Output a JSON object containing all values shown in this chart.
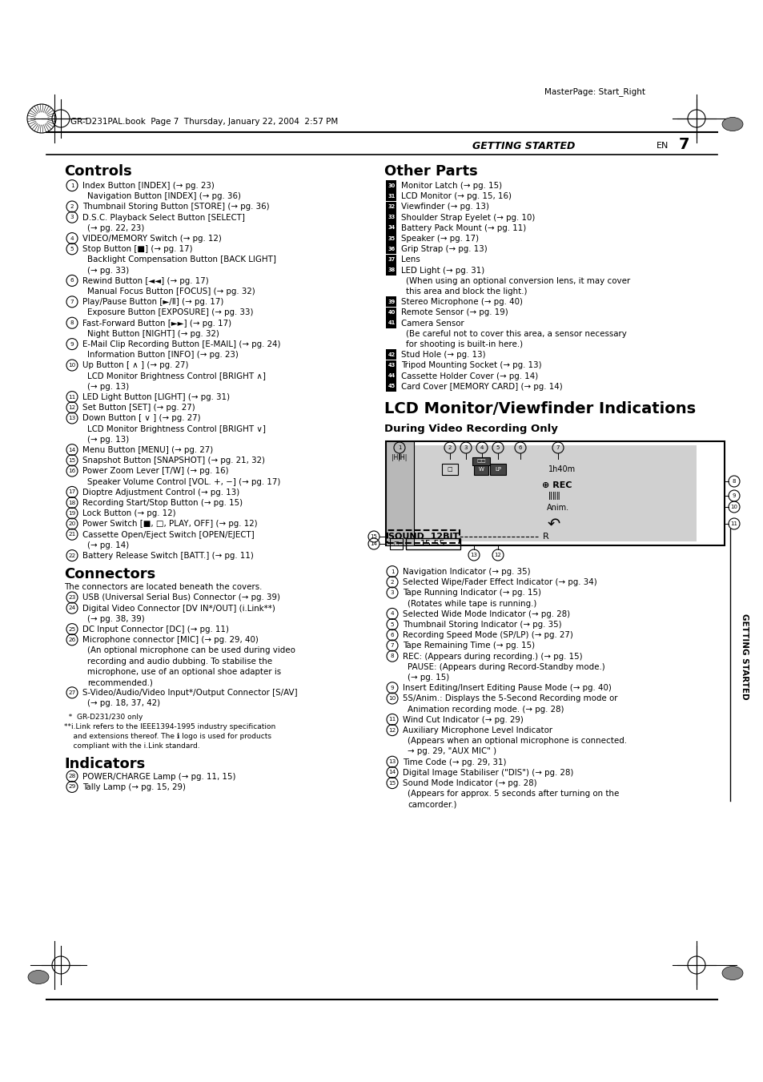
{
  "bg_color": "#ffffff",
  "page_width": 9.54,
  "page_height": 13.51,
  "header_text": "GR-D231PAL.book  Page 7  Thursday, January 22, 2004  2:57 PM",
  "masterpage_text": "MasterPage: Start_Right",
  "getting_started_label": "GETTING STARTED",
  "page_number": "7",
  "en_text": "EN",
  "controls_title": "Controls",
  "controls_items": [
    [
      "1",
      "Index Button [INDEX] (→ pg. 23)\n    Navigation Button [INDEX] (→ pg. 36)"
    ],
    [
      "2",
      "Thumbnail Storing Button [STORE] (→ pg. 36)"
    ],
    [
      "3",
      "D.S.C. Playback Select Button [SELECT]\n    (→ pg. 22, 23)"
    ],
    [
      "4",
      "VIDEO/MEMORY Switch (→ pg. 12)"
    ],
    [
      "5",
      "Stop Button [■] (→ pg. 17)\n    Backlight Compensation Button [BACK LIGHT]\n    (→ pg. 33)"
    ],
    [
      "6",
      "Rewind Button [◄◄] (→ pg. 17)\n    Manual Focus Button [FOCUS] (→ pg. 32)"
    ],
    [
      "7",
      "Play/Pause Button [►/Ⅱ] (→ pg. 17)\n    Exposure Button [EXPOSURE] (→ pg. 33)"
    ],
    [
      "8",
      "Fast-Forward Button [►►] (→ pg. 17)\n    Night Button [NIGHT] (→ pg. 32)"
    ],
    [
      "9",
      "E-Mail Clip Recording Button [E-MAIL] (→ pg. 24)\n    Information Button [INFO] (→ pg. 23)"
    ],
    [
      "10",
      "Up Button [ ∧ ] (→ pg. 27)\n    LCD Monitor Brightness Control [BRIGHT ∧]\n    (→ pg. 13)"
    ],
    [
      "11",
      "LED Light Button [LIGHT] (→ pg. 31)"
    ],
    [
      "12",
      "Set Button [SET] (→ pg. 27)"
    ],
    [
      "13",
      "Down Button [ ∨ ] (→ pg. 27)\n    LCD Monitor Brightness Control [BRIGHT ∨]\n    (→ pg. 13)"
    ],
    [
      "14",
      "Menu Button [MENU] (→ pg. 27)"
    ],
    [
      "15",
      "Snapshot Button [SNAPSHOT] (→ pg. 21, 32)"
    ],
    [
      "16",
      "Power Zoom Lever [T/W] (→ pg. 16)\n    Speaker Volume Control [VOL. +, −] (→ pg. 17)"
    ],
    [
      "17",
      "Dioptre Adjustment Control (→ pg. 13)"
    ],
    [
      "18",
      "Recording Start/Stop Button (→ pg. 15)"
    ],
    [
      "19",
      "Lock Button (→ pg. 12)"
    ],
    [
      "20",
      "Power Switch [■, □, PLAY, OFF] (→ pg. 12)"
    ],
    [
      "21",
      "Cassette Open/Eject Switch [OPEN/EJECT]\n    (→ pg. 14)"
    ],
    [
      "22",
      "Battery Release Switch [BATT.] (→ pg. 11)"
    ]
  ],
  "connectors_title": "Connectors",
  "connectors_intro": "The connectors are located beneath the covers.",
  "connectors_items": [
    [
      "23",
      "USB (Universal Serial Bus) Connector (→ pg. 39)"
    ],
    [
      "24",
      "Digital Video Connector [DV IN*/OUT] (i.Link**)\n    (→ pg. 38, 39)"
    ],
    [
      "25",
      "DC Input Connector [DC] (→ pg. 11)"
    ],
    [
      "26",
      "Microphone connector [MIC] (→ pg. 29, 40)\n    (An optional microphone can be used during video\n    recording and audio dubbing. To stabilise the\n    microphone, use of an optional shoe adapter is\n    recommended.)"
    ],
    [
      "27",
      "S-Video/Audio/Video Input*/Output Connector [S/AV]\n    (→ pg. 18, 37, 42)"
    ]
  ],
  "connectors_footnotes": [
    "  *  GR-D231/230 only",
    "**i.Link refers to the IEEE1394-1995 industry specification",
    "    and extensions thereof. The ℹ logo is used for products",
    "    compliant with the i.Link standard."
  ],
  "indicators_title": "Indicators",
  "indicators_items": [
    [
      "28",
      "POWER/CHARGE Lamp (→ pg. 11, 15)"
    ],
    [
      "29",
      "Tally Lamp (→ pg. 15, 29)"
    ]
  ],
  "other_parts_title": "Other Parts",
  "other_parts_items": [
    [
      "30",
      "Monitor Latch (→ pg. 15)"
    ],
    [
      "31",
      "LCD Monitor (→ pg. 15, 16)"
    ],
    [
      "32",
      "Viewfinder (→ pg. 13)"
    ],
    [
      "33",
      "Shoulder Strap Eyelet (→ pg. 10)"
    ],
    [
      "34",
      "Battery Pack Mount (→ pg. 11)"
    ],
    [
      "35",
      "Speaker (→ pg. 17)"
    ],
    [
      "36",
      "Grip Strap (→ pg. 13)"
    ],
    [
      "37",
      "Lens"
    ],
    [
      "38",
      "LED Light (→ pg. 31)\n    (When using an optional conversion lens, it may cover\n    this area and block the light.)"
    ],
    [
      "39",
      "Stereo Microphone (→ pg. 40)"
    ],
    [
      "40",
      "Remote Sensor (→ pg. 19)"
    ],
    [
      "41",
      "Camera Sensor\n    (Be careful not to cover this area, a sensor necessary\n    for shooting is built-in here.)"
    ],
    [
      "42",
      "Stud Hole (→ pg. 13)"
    ],
    [
      "43",
      "Tripod Mounting Socket (→ pg. 13)"
    ],
    [
      "44",
      "Cassette Holder Cover (→ pg. 14)"
    ],
    [
      "45",
      "Card Cover [MEMORY CARD] (→ pg. 14)"
    ]
  ],
  "lcd_title": "LCD Monitor/Viewfinder Indications",
  "dvr_title": "During Video Recording Only",
  "dvr_items": [
    [
      "1",
      "Navigation Indicator (→ pg. 35)"
    ],
    [
      "2",
      "Selected Wipe/Fader Effect Indicator (→ pg. 34)"
    ],
    [
      "3",
      "Tape Running Indicator (→ pg. 15)\n    (Rotates while tape is running.)"
    ],
    [
      "4",
      "Selected Wide Mode Indicator (→ pg. 28)"
    ],
    [
      "5",
      "Thumbnail Storing Indicator (→ pg. 35)"
    ],
    [
      "6",
      "Recording Speed Mode (SP/LP) (→ pg. 27)"
    ],
    [
      "7",
      "Tape Remaining Time (→ pg. 15)"
    ],
    [
      "8",
      "REC: (Appears during recording.) (→ pg. 15)\n    PAUSE: (Appears during Record-Standby mode.)\n    (→ pg. 15)"
    ],
    [
      "9",
      "Insert Editing/Insert Editing Pause Mode (→ pg. 40)"
    ],
    [
      "10",
      "5S/Anim.: Displays the 5-Second Recording mode or\n    Animation recording mode. (→ pg. 28)"
    ],
    [
      "11",
      "Wind Cut Indicator (→ pg. 29)"
    ],
    [
      "12",
      "Auxiliary Microphone Level Indicator\n    (Appears when an optional microphone is connected.\n    → pg. 29, \"AUX MIC\" )"
    ],
    [
      "13",
      "Time Code (→ pg. 29, 31)"
    ],
    [
      "14",
      "Digital Image Stabiliser (\"DIS\") (→ pg. 28)"
    ],
    [
      "15",
      "Sound Mode Indicator (→ pg. 28)\n    (Appears for approx. 5 seconds after turning on the\n    camcorder.)"
    ]
  ]
}
